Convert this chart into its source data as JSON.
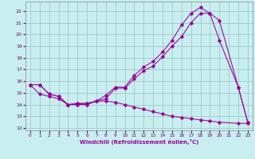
{
  "bg_color": "#c8eef0",
  "grid_color": "#a0c8cc",
  "line_color": "#990099",
  "line1_x": [
    0,
    1,
    2,
    3,
    4,
    5,
    6,
    7,
    8,
    9,
    10,
    11,
    12,
    13,
    14,
    15,
    16,
    17,
    18,
    19,
    20,
    22,
    23
  ],
  "line1_y": [
    15.7,
    15.7,
    14.9,
    14.7,
    14.0,
    14.1,
    14.1,
    14.3,
    14.8,
    15.5,
    15.5,
    16.5,
    17.2,
    17.7,
    18.5,
    19.5,
    20.8,
    21.8,
    22.3,
    21.8,
    19.5,
    15.5,
    12.5
  ],
  "line2_x": [
    0,
    1,
    2,
    3,
    4,
    5,
    6,
    7,
    8,
    9,
    10,
    11,
    12,
    13,
    14,
    15,
    16,
    17,
    18,
    19,
    20,
    22,
    23
  ],
  "line2_y": [
    15.7,
    15.7,
    14.9,
    14.7,
    14.0,
    14.1,
    14.1,
    14.3,
    14.5,
    15.4,
    15.4,
    16.2,
    16.9,
    17.3,
    18.1,
    19.0,
    19.8,
    21.0,
    21.8,
    21.8,
    21.2,
    15.5,
    12.5
  ],
  "line3_x": [
    0,
    1,
    2,
    3,
    4,
    5,
    6,
    7,
    8,
    9,
    10,
    11,
    12,
    13,
    14,
    15,
    16,
    17,
    18,
    19,
    20,
    22,
    23
  ],
  "line3_y": [
    15.7,
    14.9,
    14.7,
    14.5,
    14.0,
    14.0,
    14.0,
    14.3,
    14.3,
    14.2,
    14.0,
    13.8,
    13.6,
    13.4,
    13.2,
    13.0,
    12.9,
    12.8,
    12.7,
    12.6,
    12.5,
    12.4,
    12.4
  ],
  "xlim": [
    -0.5,
    23.5
  ],
  "ylim": [
    11.8,
    22.8
  ],
  "yticks": [
    12,
    13,
    14,
    15,
    16,
    17,
    18,
    19,
    20,
    21,
    22
  ],
  "xticks": [
    0,
    1,
    2,
    3,
    4,
    5,
    6,
    7,
    8,
    9,
    10,
    11,
    12,
    13,
    14,
    15,
    16,
    17,
    18,
    19,
    20,
    21,
    22,
    23
  ],
  "xlabel": "Windchill (Refroidissement éolien,°C)"
}
